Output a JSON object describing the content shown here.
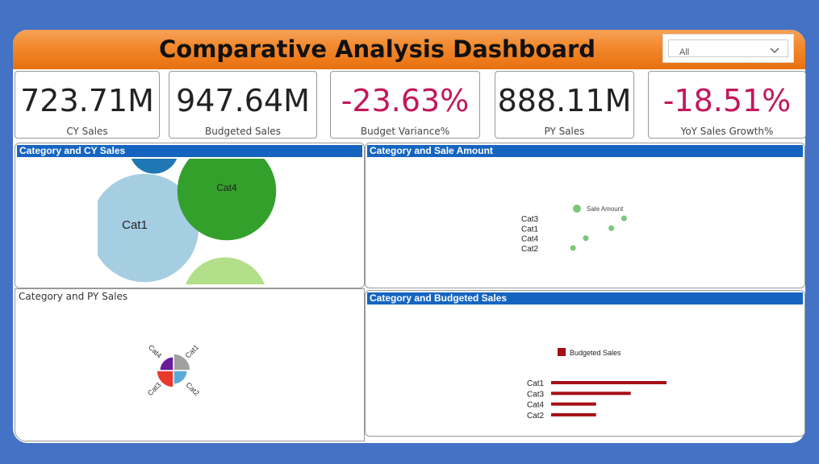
{
  "header": {
    "title": "Comparative Analysis Dashboard"
  },
  "slicer": {
    "value": "All"
  },
  "kpis": [
    {
      "value": "723.71M",
      "label": "CY Sales",
      "negative": false
    },
    {
      "value": "947.64M",
      "label": "Budgeted Sales",
      "negative": false
    },
    {
      "value": "-23.63%",
      "label": "Budget Variance%",
      "negative": true
    },
    {
      "value": "888.11M",
      "label": "PY Sales",
      "negative": false
    },
    {
      "value": "-18.51%",
      "label": "YoY Sales Growth%",
      "negative": true
    }
  ],
  "cards": {
    "cy": {
      "title": "Category and CY Sales"
    },
    "sale": {
      "title": "Category and Sale Amount"
    },
    "py": {
      "title": "Category and PY Sales"
    },
    "budget": {
      "title": "Category and Budgeted Sales"
    }
  },
  "colors": {
    "header": "#f38a2e",
    "card_title": "#1565c0",
    "negative": "#c2185b",
    "cat1": "#a6cee3",
    "cat4": "#33a02c",
    "cat3": "#b2df8a",
    "cat2": "#1f78b4",
    "sale_dot": "#7cc57c",
    "budget_bar": "#a50f15",
    "py_cat1": "#a0a0a0",
    "py_cat2": "#5aa9d6",
    "py_cat3": "#e8392b",
    "py_cat4": "#6a1b9a"
  },
  "chart_data": [
    {
      "type": "bubble",
      "title": "Category and CY Sales",
      "labels_shown": [
        "Cat1",
        "Cat4"
      ],
      "categories": [
        "Cat1",
        "Cat4",
        "Cat3",
        "Cat2"
      ],
      "relative_size": [
        0.8,
        0.7,
        0.6,
        0.35
      ]
    },
    {
      "type": "scatter",
      "title": "Category and Sale Amount",
      "legend": "Sale Amount",
      "legend_position": "top",
      "categories": [
        "Cat3",
        "Cat1",
        "Cat4",
        "Cat2"
      ],
      "values": [
        0.85,
        0.75,
        0.55,
        0.45
      ]
    },
    {
      "type": "pie",
      "title": "Category and PY Sales",
      "categories": [
        "Cat1",
        "Cat2",
        "Cat3",
        "Cat4"
      ],
      "values": [
        25,
        25,
        25,
        25
      ]
    },
    {
      "type": "bar",
      "title": "Category and Budgeted Sales",
      "legend": "Budgeted Sales",
      "legend_position": "top",
      "categories": [
        "Cat1",
        "Cat3",
        "Cat4",
        "Cat2"
      ],
      "values": [
        1.0,
        0.69,
        0.39,
        0.39
      ]
    }
  ]
}
